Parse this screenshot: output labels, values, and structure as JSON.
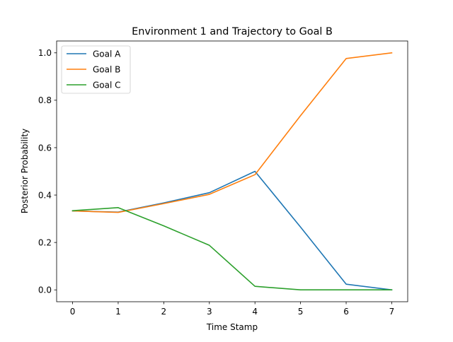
{
  "chart_data": {
    "type": "line",
    "title": "Environment 1 and Trajectory to Goal B",
    "xlabel": "Time Stamp",
    "ylabel": "Posterior Probability",
    "x": [
      0,
      1,
      2,
      3,
      4,
      5,
      6,
      7
    ],
    "xlim": [
      -0.35,
      7.35
    ],
    "ylim": [
      -0.05,
      1.05
    ],
    "xticks": [
      0,
      1,
      2,
      3,
      4,
      5,
      6,
      7
    ],
    "xtick_labels": [
      "0",
      "1",
      "2",
      "3",
      "4",
      "5",
      "6",
      "7"
    ],
    "yticks": [
      0.0,
      0.2,
      0.4,
      0.6,
      0.8,
      1.0
    ],
    "ytick_labels": [
      "0.0",
      "0.2",
      "0.4",
      "0.6",
      "0.8",
      "1.0"
    ],
    "grid": false,
    "legend_position": "top-left",
    "series": [
      {
        "name": "Goal A",
        "color": "#1f77b4",
        "values": [
          0.333,
          0.328,
          0.367,
          0.41,
          0.5,
          0.265,
          0.024,
          0.0
        ]
      },
      {
        "name": "Goal B",
        "color": "#ff7f0e",
        "values": [
          0.333,
          0.327,
          0.364,
          0.403,
          0.486,
          0.735,
          0.976,
          1.0
        ]
      },
      {
        "name": "Goal C",
        "color": "#2ca02c",
        "values": [
          0.334,
          0.347,
          0.27,
          0.188,
          0.015,
          0.0,
          0.0,
          0.0
        ]
      }
    ]
  }
}
